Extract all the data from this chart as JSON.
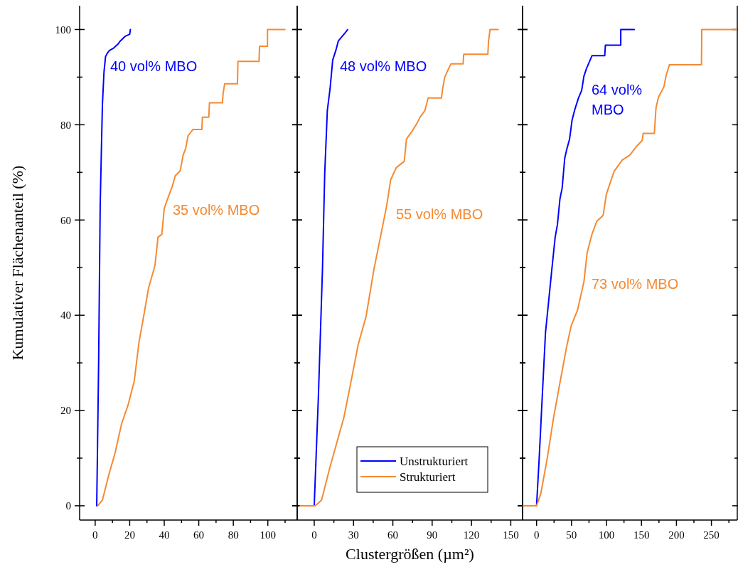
{
  "chart_data": [
    {
      "type": "line",
      "ylabel": "Kumulativer Flächenanteil (%)",
      "xlim": [
        -9,
        117
      ],
      "ylim": [
        -3,
        105
      ],
      "xticks": [
        0,
        {
          "value": 10,
          "label": null
        },
        20,
        {
          "value": 30,
          "label": null
        },
        40,
        {
          "value": 50,
          "label": null
        },
        60,
        {
          "value": 70,
          "label": null
        },
        80,
        {
          "value": 90,
          "label": null
        },
        100,
        {
          "value": 110,
          "label": null
        }
      ],
      "yticks": [
        0,
        {
          "value": 10,
          "label": null
        },
        20,
        {
          "value": 30,
          "label": null
        },
        40,
        {
          "value": 50,
          "label": null
        },
        60,
        {
          "value": 70,
          "label": null
        },
        80,
        {
          "value": 90,
          "label": null
        },
        100
      ],
      "series": [
        {
          "color": "#0000ff",
          "x": [
            0.9,
            2.0,
            2.9,
            3.7,
            4.2,
            5.1,
            6.0,
            7.0,
            8.3,
            10.7,
            13.4,
            14.3,
            17.5,
            20.0,
            20.4
          ],
          "values": [
            0,
            29.8,
            63,
            76.3,
            84.3,
            91,
            94.3,
            95,
            95.6,
            96.1,
            97,
            97.5,
            98.6,
            99,
            100
          ]
        },
        {
          "color": "#f58a32",
          "x": [
            1.5,
            4.2,
            7.9,
            11.6,
            15.3,
            19.0,
            22.6,
            25.4,
            28.1,
            30.9,
            34.6,
            36.4,
            38.6,
            40.0,
            41.9,
            44.6,
            46.4,
            49.2,
            51.0,
            52.4,
            53.8,
            56.6,
            61.8,
            62.1,
            65.8,
            66.2,
            73.7,
            74.1,
            75.0,
            82.4,
            82.7,
            94.9,
            95.2,
            99.8,
            99.8,
            109.9
          ],
          "values": [
            0,
            1.2,
            6.5,
            11.2,
            17.2,
            21.1,
            26.1,
            34.4,
            39.8,
            45.7,
            50.4,
            56.4,
            57,
            62.4,
            64.4,
            67,
            69.3,
            70.3,
            73.7,
            75,
            77.7,
            79,
            79,
            81.6,
            81.6,
            84.6,
            84.6,
            86.6,
            88.6,
            88.6,
            93.3,
            93.3,
            96.5,
            96.5,
            100,
            100
          ]
        }
      ],
      "annotations": [
        "40 vol% MBO",
        "35 vol% MBO"
      ]
    },
    {
      "type": "line",
      "xlabel": "Clustergrößen (µm²)",
      "tick_labels": "x",
      "legend": "bottom right",
      "xlim": [
        -13,
        159
      ],
      "ylim": [
        -3,
        105
      ],
      "xticks": [
        0,
        {
          "value": 15,
          "label": null
        },
        30,
        {
          "value": 45,
          "label": null
        },
        60,
        {
          "value": 75,
          "label": null
        },
        90,
        {
          "value": 105,
          "label": null
        },
        120,
        {
          "value": 135,
          "label": null
        },
        150
      ],
      "yticks": [
        0,
        {
          "value": 10,
          "label": null
        },
        20,
        {
          "value": 30,
          "label": null
        },
        40,
        {
          "value": 50,
          "label": null
        },
        60,
        {
          "value": 70,
          "label": null
        },
        80,
        {
          "value": 90,
          "label": null
        },
        100
      ],
      "series": [
        {
          "name": "Unstrukturiert",
          "color": "#0000ff",
          "x": [
            0,
            3.2,
            6.3,
            8.0,
            10.0,
            12.1,
            14.1,
            16.5,
            18.4,
            21.4,
            24.5,
            25.5
          ],
          "values": [
            0,
            23.1,
            49.7,
            69.7,
            83,
            87.6,
            93.6,
            95.6,
            97.6,
            98.6,
            99.6,
            100
          ]
        },
        {
          "name": "Strukturiert",
          "color": "#f58a32",
          "x": [
            -10.7,
            0.7,
            5.6,
            11.7,
            17.8,
            22.6,
            27.4,
            33.5,
            39.6,
            45.6,
            50.5,
            55.3,
            58.3,
            62.6,
            68.7,
            70.4,
            74.8,
            78.4,
            80.8,
            84.5,
            86.9,
            97.1,
            97.8,
            99.5,
            101.9,
            104.4,
            113.6,
            114.1,
            132.5,
            133.0,
            134.2,
            140.3
          ],
          "values": [
            0,
            0,
            1.2,
            7.8,
            13.8,
            18.5,
            25.1,
            33.8,
            39.8,
            49.7,
            56.4,
            63,
            68.4,
            71,
            72.3,
            77,
            78.7,
            80.3,
            81.6,
            83,
            85.6,
            85.6,
            87.2,
            89.9,
            91.4,
            92.8,
            92.8,
            94.8,
            94.8,
            97.5,
            100,
            100
          ]
        }
      ],
      "annotations": [
        "48 vol% MBO",
        "55 vol% MBO"
      ]
    },
    {
      "type": "line",
      "tick_labels": "x",
      "xlim": [
        -20,
        287
      ],
      "ylim": [
        -3,
        105
      ],
      "xticks": [
        0,
        {
          "value": 25,
          "label": null
        },
        50,
        {
          "value": 75,
          "label": null
        },
        100,
        {
          "value": 125,
          "label": null
        },
        150,
        {
          "value": 175,
          "label": null
        },
        200,
        {
          "value": 225,
          "label": null
        },
        250,
        {
          "value": 275,
          "label": null
        }
      ],
      "yticks": [
        0,
        {
          "value": 10,
          "label": null
        },
        20,
        {
          "value": 30,
          "label": null
        },
        40,
        {
          "value": 50,
          "label": null
        },
        60,
        {
          "value": 70,
          "label": null
        },
        80,
        {
          "value": 90,
          "label": null
        },
        100
      ],
      "series": [
        {
          "color": "#0000ff",
          "x": [
            0,
            3.7,
            8.2,
            12.8,
            17.4,
            21.9,
            26.6,
            29.8,
            33.4,
            36.6,
            40.3,
            43.5,
            47.2,
            50.8,
            54.9,
            59.9,
            64.5,
            67.7,
            71.4,
            79.2,
            97.5,
            98.4,
            120.4,
            120.4,
            139.7
          ],
          "values": [
            0,
            9.8,
            23.1,
            36.4,
            43.1,
            49.7,
            56.4,
            59,
            64.4,
            66.7,
            73,
            75,
            77,
            81,
            83.3,
            85.6,
            87.2,
            90.2,
            91.8,
            94.5,
            94.5,
            96.7,
            96.7,
            100,
            100
          ]
        },
        {
          "color": "#f58a32",
          "x": [
            -19,
            0,
            6.0,
            15.1,
            24.3,
            33.4,
            42.6,
            49.5,
            58.6,
            67.8,
            72.3,
            79.2,
            86.0,
            95.2,
            99.8,
            106.6,
            111.2,
            122.6,
            133.2,
            143.2,
            151.0,
            152.5,
            168.4,
            170.8,
            174.4,
            182.2,
            185.3,
            190.0,
            235.8,
            236.2,
            286
          ],
          "values": [
            0,
            0,
            2.5,
            9.8,
            18.5,
            25.8,
            33.1,
            37.8,
            41.1,
            47.1,
            53.1,
            57,
            59.7,
            61,
            65.4,
            68.4,
            70.3,
            72.6,
            73.6,
            75.5,
            76.7,
            78.2,
            78.2,
            83.6,
            85.8,
            88,
            90.4,
            92.6,
            92.6,
            100,
            100
          ]
        }
      ],
      "annotations": [
        "64 vol%\nMBO",
        "73 vol% MBO"
      ]
    }
  ]
}
